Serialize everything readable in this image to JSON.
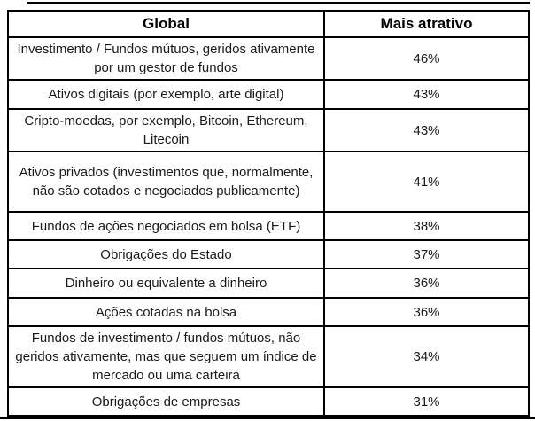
{
  "chart_data": {
    "type": "table",
    "columns": [
      "Global",
      "Mais atrativo"
    ],
    "categories": [
      "Investimento / Fundos mútuos, geridos ativamente por um gestor de fundos",
      "Ativos digitais (por exemplo, arte digital)",
      "Cripto-moedas, por exemplo, Bitcoin, Ethereum, Litecoin",
      "Ativos privados (investimentos que, normalmente, não são cotados e negociados publicamente)",
      "Fundos de ações negociados em bolsa (ETF)",
      "Obrigações do Estado",
      "Dinheiro ou equivalente a dinheiro",
      "Ações cotadas na bolsa",
      "Fundos de investimento / fundos mútuos, não geridos ativamente, mas que seguem um índice de mercado ou uma carteira",
      "Obrigações de empresas"
    ],
    "values_percent": [
      46,
      43,
      43,
      41,
      38,
      37,
      36,
      36,
      34,
      31
    ],
    "rows": [
      {
        "label": "Investimento / Fundos mútuos, geridos ativamente por um gestor de fundos",
        "value": "46%"
      },
      {
        "label": "Ativos digitais (por exemplo, arte digital)",
        "value": "43%"
      },
      {
        "label": "Cripto-moedas, por exemplo, Bitcoin, Ethereum, Litecoin",
        "value": "43%"
      },
      {
        "label": "Ativos privados (investimentos que, normalmente, não são cotados e negociados publicamente)",
        "value": "41%"
      },
      {
        "label": "Fundos de ações negociados em bolsa (ETF)",
        "value": "38%"
      },
      {
        "label": "Obrigações do Estado",
        "value": "37%"
      },
      {
        "label": "Dinheiro ou equivalente a dinheiro",
        "value": "36%"
      },
      {
        "label": "Ações cotadas na bolsa",
        "value": "36%"
      },
      {
        "label": "Fundos de investimento / fundos mútuos, não geridos ativamente, mas que seguem um índice de mercado ou uma carteira",
        "value": "34%"
      },
      {
        "label": "Obrigações de empresas",
        "value": "31%"
      }
    ]
  },
  "colors": {
    "border": "#000000",
    "text": "#1a1a1a",
    "header_text": "#000000",
    "background": "#ffffff"
  }
}
